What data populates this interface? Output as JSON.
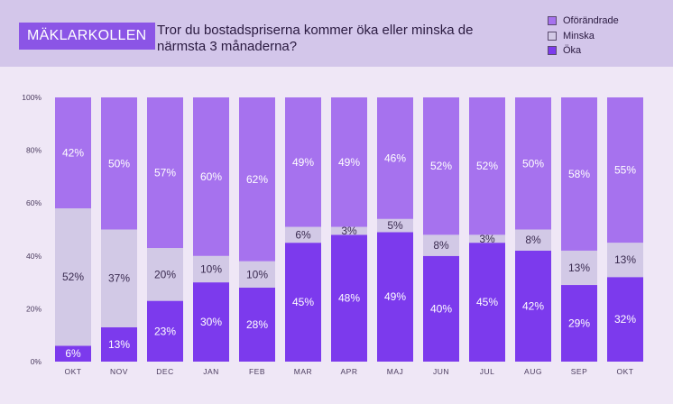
{
  "header": {
    "brand": "MÄKLARKOLLEN",
    "title": "Tror du bostadspriserna kommer öka eller minska de närmsta 3 månaderna?"
  },
  "chart_data": {
    "type": "bar",
    "stacked": true,
    "title": "Tror du bostadspriserna kommer öka eller minska de närmsta 3 månaderna?",
    "categories": [
      "OKT",
      "NOV",
      "DEC",
      "JAN",
      "FEB",
      "MAR",
      "APR",
      "MAJ",
      "JUN",
      "JUL",
      "AUG",
      "SEP",
      "OKT"
    ],
    "ylim": [
      0,
      100
    ],
    "yticks": [
      "0%",
      "20%",
      "40%",
      "60%",
      "80%",
      "100%"
    ],
    "legend_position": "top-right",
    "series": [
      {
        "name": "Öka",
        "color": "#7c3aed",
        "values": [
          6,
          13,
          23,
          30,
          28,
          45,
          48,
          49,
          40,
          45,
          42,
          29,
          32
        ],
        "labels": [
          "6%",
          "13%",
          "23%",
          "30%",
          "28%",
          "45%",
          "48%",
          "49%",
          "40%",
          "45%",
          "42%",
          "29%",
          "32%"
        ]
      },
      {
        "name": "Minska",
        "color": "#d2c9e6",
        "values": [
          52,
          37,
          20,
          10,
          10,
          6,
          3,
          5,
          8,
          3,
          8,
          13,
          13
        ],
        "labels": [
          "52%",
          "37%",
          "20%",
          "10%",
          "10%",
          "6%",
          "3%",
          "5%",
          "8%",
          "3%",
          "8%",
          "13%",
          "13%"
        ]
      },
      {
        "name": "Oförändrade",
        "color": "#a672ee",
        "values": [
          42,
          50,
          57,
          60,
          62,
          49,
          49,
          46,
          52,
          52,
          50,
          58,
          55
        ],
        "labels": [
          "42%",
          "50%",
          "57%",
          "60%",
          "62%",
          "49%",
          "49%",
          "46%",
          "52%",
          "52%",
          "50%",
          "58%",
          "55%"
        ]
      }
    ]
  }
}
